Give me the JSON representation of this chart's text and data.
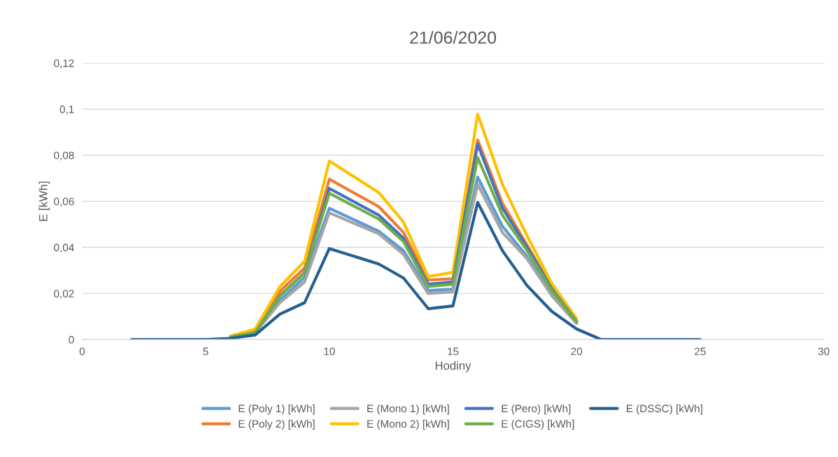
{
  "chart_data": {
    "type": "line",
    "title": "21/06/2020",
    "xlabel": "Hodiny",
    "ylabel": "E [kWh]",
    "x": [
      2,
      3,
      4,
      5,
      6,
      7,
      8,
      9,
      10,
      12,
      13,
      14,
      15,
      16,
      17,
      18,
      19,
      20,
      21,
      22,
      23,
      24,
      25
    ],
    "xlim": [
      0,
      30
    ],
    "xticks": [
      0,
      5,
      10,
      15,
      20,
      25,
      30
    ],
    "ylim": [
      0,
      0.12
    ],
    "yticks": [
      {
        "value": 0,
        "label": "0"
      },
      {
        "value": 0.02,
        "label": "0,02"
      },
      {
        "value": 0.04,
        "label": "0,04"
      },
      {
        "value": 0.06,
        "label": "0,06"
      },
      {
        "value": 0.08,
        "label": "0,08"
      },
      {
        "value": 0.1,
        "label": "0,1"
      },
      {
        "value": 0.12,
        "label": "0,12"
      }
    ],
    "grid": "y",
    "legend": "bottom",
    "marker": "none",
    "line_style": "solid",
    "series": [
      {
        "name": "E (Poly 1) [kWh]",
        "color": "#5b9bd5",
        "values": [
          null,
          null,
          null,
          null,
          0.001,
          0.003,
          0.017,
          0.027,
          0.057,
          0.047,
          0.0386,
          0.0213,
          0.0219,
          0.0705,
          0.0492,
          0.036,
          0.0204,
          0.0075,
          null,
          null,
          null,
          null,
          null
        ]
      },
      {
        "name": "E (Poly 2) [kWh]",
        "color": "#ed7d31",
        "values": [
          null,
          null,
          null,
          null,
          0.001,
          0.0035,
          0.021,
          0.031,
          0.0696,
          0.0577,
          0.0465,
          0.0258,
          0.0264,
          0.0866,
          0.0592,
          0.041,
          0.0228,
          0.008,
          null,
          null,
          null,
          null,
          null
        ]
      },
      {
        "name": "E (Mono 1) [kWh]",
        "color": "#a5a5a5",
        "values": [
          null,
          null,
          null,
          null,
          0.001,
          0.003,
          0.016,
          0.025,
          0.055,
          0.0459,
          0.037,
          0.02,
          0.0207,
          0.0674,
          0.0465,
          0.035,
          0.019,
          0.007,
          null,
          null,
          null,
          null,
          null
        ]
      },
      {
        "name": "E (Mono 2) [kWh]",
        "color": "#ffc000",
        "values": [
          null,
          null,
          null,
          null,
          0.0015,
          0.0045,
          0.023,
          0.034,
          0.0775,
          0.0638,
          0.051,
          0.0273,
          0.0292,
          0.0978,
          0.0674,
          0.045,
          0.0243,
          0.0091,
          null,
          null,
          null,
          null,
          null
        ]
      },
      {
        "name": "E (Pero) [kWh]",
        "color": "#4472c4",
        "values": [
          null,
          null,
          null,
          null,
          0.001,
          0.003,
          0.019,
          0.029,
          0.0656,
          0.054,
          0.044,
          0.024,
          0.025,
          0.0848,
          0.0571,
          0.04,
          0.022,
          0.0078,
          null,
          null,
          null,
          null,
          null
        ]
      },
      {
        "name": "E (CIGS) [kWh]",
        "color": "#70ad47",
        "values": [
          null,
          null,
          null,
          null,
          0.001,
          0.003,
          0.019,
          0.029,
          0.0635,
          0.0523,
          0.0425,
          0.023,
          0.024,
          0.079,
          0.054,
          0.0386,
          0.0213,
          0.0076,
          null,
          null,
          null,
          null,
          null
        ]
      },
      {
        "name": "E (DSSC) [kWh]",
        "color": "#255e91",
        "values": [
          0,
          0,
          0,
          0,
          0.0005,
          0.002,
          0.011,
          0.016,
          0.0395,
          0.0328,
          0.0267,
          0.0134,
          0.0146,
          0.0595,
          0.0386,
          0.0234,
          0.0122,
          0.0046,
          0,
          0,
          0,
          0,
          0
        ]
      }
    ]
  }
}
